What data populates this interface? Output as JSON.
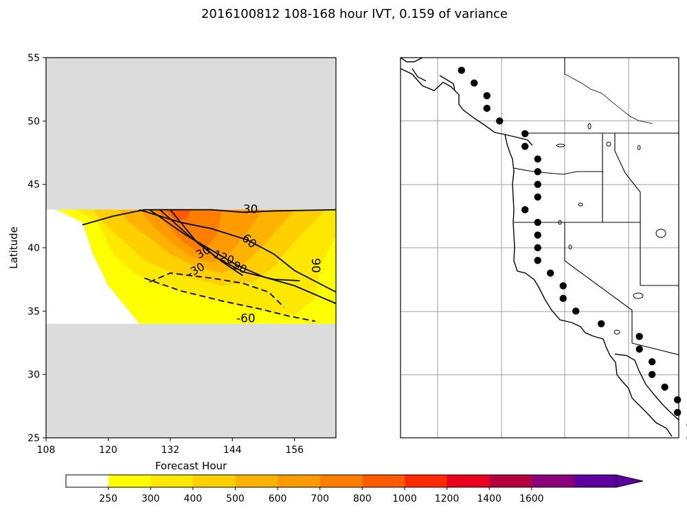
{
  "title": "2016100812 108-168 hour IVT, 0.159 of variance",
  "chart_data": [
    {
      "type": "contour",
      "xlabel": "Forecast Hour",
      "ylabel": "Latitude",
      "xlim": [
        108,
        164
      ],
      "ylim": [
        25,
        55
      ],
      "xticks": [
        "108",
        "120",
        "132",
        "144",
        "156"
      ],
      "yticks": [
        "25",
        "30",
        "35",
        "40",
        "45",
        "50",
        "55"
      ],
      "masked_bands": [
        [
          25,
          34
        ],
        [
          43,
          55
        ]
      ],
      "filled_regions": [
        {
          "level": 250,
          "color": "#ffff00",
          "points": [
            [
              110,
              43
            ],
            [
              164,
              43
            ],
            [
              164,
              34
            ],
            [
              126,
              34
            ],
            [
              120,
              37
            ],
            [
              117,
              39.5
            ],
            [
              115,
              42
            ]
          ]
        },
        {
          "level": 300,
          "color": "#ffe800",
          "points": [
            [
              114,
              43
            ],
            [
              164,
              43
            ],
            [
              164,
              41
            ],
            [
              161,
              38.5
            ],
            [
              160,
              36
            ],
            [
              156,
              34.7
            ],
            [
              150,
              35
            ],
            [
              140,
              36
            ],
            [
              130,
              37
            ],
            [
              125,
              38
            ],
            [
              121,
              39.5
            ],
            [
              118,
              42
            ]
          ]
        },
        {
          "level": 400,
          "color": "#ffcf00",
          "points": [
            [
              117,
              43
            ],
            [
              162,
              43
            ],
            [
              156,
              40.5
            ],
            [
              152,
              38.5
            ],
            [
              148,
              37.3
            ],
            [
              142,
              37
            ],
            [
              134,
              37.8
            ],
            [
              127,
              39
            ],
            [
              123,
              40.5
            ],
            [
              119,
              42
            ]
          ]
        },
        {
          "level": 500,
          "color": "#ffb300",
          "points": [
            [
              122,
              43
            ],
            [
              156,
              43
            ],
            [
              150,
              40.2
            ],
            [
              146,
              38.6
            ],
            [
              142,
              38
            ],
            [
              137,
              38.5
            ],
            [
              132,
              39.5
            ],
            [
              128,
              40.8
            ],
            [
              124,
              42
            ]
          ]
        },
        {
          "level": 600,
          "color": "#ff9a00",
          "points": [
            [
              126,
              43
            ],
            [
              150,
              43
            ],
            [
              146,
              40.8
            ],
            [
              143,
              39.3
            ],
            [
              140,
              38.8
            ],
            [
              136,
              39.3
            ],
            [
              132,
              40.5
            ],
            [
              128,
              42
            ]
          ]
        },
        {
          "level": 700,
          "color": "#ff7e00",
          "points": [
            [
              129,
              43
            ],
            [
              142,
              43
            ],
            [
              141,
              41
            ],
            [
              139,
              40
            ],
            [
              137,
              39.7
            ],
            [
              134,
              40.6
            ],
            [
              131,
              42
            ]
          ]
        },
        {
          "level": 800,
          "color": "#ff5a00",
          "points": [
            [
              131,
              43
            ],
            [
              136,
              43
            ],
            [
              135,
              42.2
            ],
            [
              133,
              42.2
            ]
          ]
        }
      ],
      "contours": [
        {
          "level": "30",
          "style": "solid",
          "points": [
            [
              115,
              41.8
            ],
            [
              121,
              42.5
            ],
            [
              127,
              43
            ],
            [
              140,
              43
            ],
            [
              146,
              42.8
            ],
            [
              152,
              42.9
            ],
            [
              164,
              43
            ]
          ]
        },
        {
          "level": "60",
          "style": "solid",
          "points": [
            [
              126,
              43
            ],
            [
              134,
              42
            ],
            [
              140,
              41.5
            ],
            [
              147,
              40.6
            ],
            [
              152,
              39.5
            ],
            [
              156,
              38.2
            ],
            [
              164,
              36.5
            ]
          ]
        },
        {
          "level": "90",
          "style": "solid",
          "points": [
            [
              128,
              43
            ],
            [
              135,
              41
            ],
            [
              140,
              39.8
            ],
            [
              145,
              38.6
            ],
            [
              150,
              37.7
            ],
            [
              156,
              37
            ],
            [
              164,
              35.6
            ]
          ]
        },
        {
          "level": "120",
          "style": "solid",
          "points": [
            [
              130,
              43
            ],
            [
              136,
              40.8
            ],
            [
              141,
              39.2
            ],
            [
              146,
              38.1
            ],
            [
              152,
              37.5
            ],
            [
              157,
              37.4
            ]
          ]
        },
        {
          "level": "150",
          "style": "solid",
          "points": [
            [
              132,
              43
            ],
            [
              137,
              40.5
            ],
            [
              142,
              38.9
            ],
            [
              146,
              37.8
            ]
          ]
        },
        {
          "level": "-30",
          "style": "dashed",
          "points": [
            [
              128,
              37.3
            ],
            [
              132,
              38
            ],
            [
              140,
              37.6
            ],
            [
              146,
              37.2
            ],
            [
              151,
              36.5
            ],
            [
              154,
              35.3
            ]
          ]
        },
        {
          "level": "-60",
          "style": "dashed",
          "points": [
            [
              127,
              37.6
            ],
            [
              134,
              36.6
            ],
            [
              142,
              35.8
            ],
            [
              149,
              35.2
            ],
            [
              155,
              34.6
            ],
            [
              160,
              34.2
            ]
          ]
        }
      ],
      "contour_labels": [
        {
          "text": "30",
          "x": 147.5,
          "y": 43.0,
          "rot": 0,
          "size": 17
        },
        {
          "text": "60",
          "x": 147.2,
          "y": 40.5,
          "rot": 40,
          "size": 17
        },
        {
          "text": "90",
          "x": 160.0,
          "y": 38.6,
          "rot": 90,
          "size": 17
        },
        {
          "text": "30",
          "x": 138.4,
          "y": 39.6,
          "rot": -30,
          "size": 16
        },
        {
          "text": "90",
          "x": 145.4,
          "y": 38.4,
          "rot": 25,
          "size": 16
        },
        {
          "text": "120",
          "x": 142.3,
          "y": 39.2,
          "rot": 20,
          "size": 16
        },
        {
          "text": "-30",
          "x": 137.0,
          "y": 38.2,
          "rot": -30,
          "size": 16
        },
        {
          "text": "-60",
          "x": 146.6,
          "y": 34.4,
          "rot": 0,
          "size": 17
        }
      ]
    },
    {
      "type": "map",
      "region": "US West Coast",
      "points": [
        [
          -131.0,
          54.0
        ],
        [
          -130.0,
          53.0
        ],
        [
          -129.0,
          52.0
        ],
        [
          -129.0,
          51.0
        ],
        [
          -128.0,
          50.0
        ],
        [
          -126.0,
          49.0
        ],
        [
          -126.0,
          48.0
        ],
        [
          -125.0,
          47.0
        ],
        [
          -125.0,
          46.0
        ],
        [
          -125.0,
          45.0
        ],
        [
          -125.0,
          44.0
        ],
        [
          -126.0,
          43.0
        ],
        [
          -125.0,
          42.0
        ],
        [
          -125.0,
          41.0
        ],
        [
          -125.0,
          40.0
        ],
        [
          -125.0,
          39.0
        ],
        [
          -124.0,
          38.0
        ],
        [
          -123.0,
          37.0
        ],
        [
          -123.0,
          36.0
        ],
        [
          -122.0,
          35.0
        ],
        [
          -120.0,
          34.0
        ],
        [
          -117.0,
          33.0
        ],
        [
          -117.0,
          32.0
        ],
        [
          -116.0,
          31.0
        ],
        [
          -116.0,
          30.0
        ],
        [
          -115.0,
          29.0
        ],
        [
          -114.0,
          28.0
        ],
        [
          -114.0,
          27.0
        ],
        [
          -113.0,
          26.0
        ],
        [
          -113.0,
          25.0
        ]
      ]
    },
    {
      "type": "colorbar",
      "ticks": [
        "250",
        "300",
        "400",
        "500",
        "600",
        "700",
        "800",
        "1000",
        "1200",
        "1400",
        "1600"
      ],
      "colors": [
        "#ffffff",
        "#ffff00",
        "#ffe800",
        "#ffcf00",
        "#ffb300",
        "#ff9a00",
        "#ff7e00",
        "#ff5a00",
        "#ff2a00",
        "#e8001e",
        "#b5003e",
        "#8a007a",
        "#5e009e"
      ],
      "extend": "max"
    }
  ]
}
